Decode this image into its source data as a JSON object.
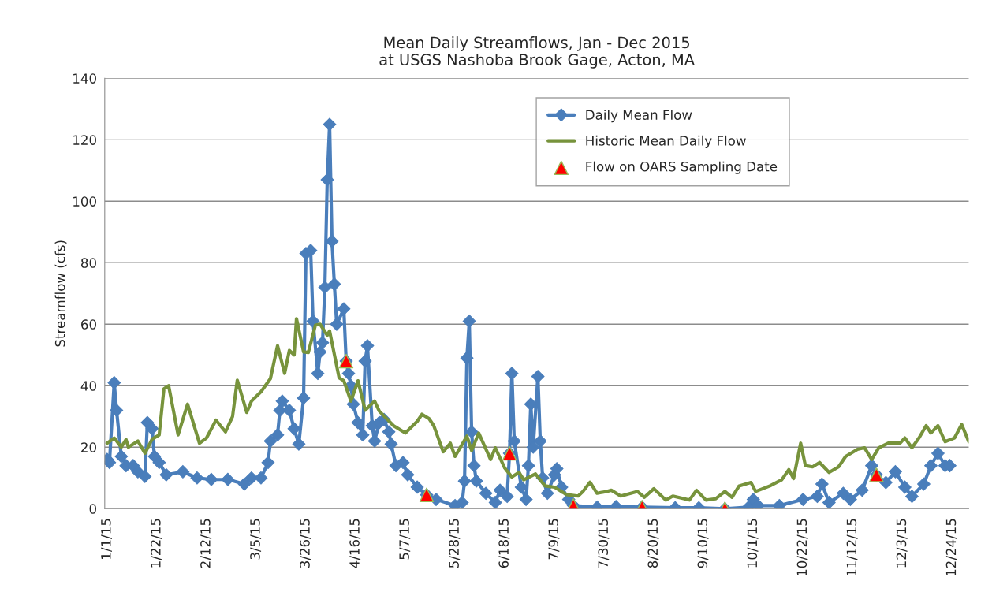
{
  "chart_data": {
    "type": "line",
    "title": "Mean Daily Streamflows, Jan - Dec 2015\nat USGS Nashoba Brook Gage, Acton, MA",
    "ylabel": "Streamflow (cfs)",
    "xlim": [
      "2014-12-31",
      "2015-12-31"
    ],
    "xticks": [
      {
        "value": "2015-01-01",
        "label": "1/1/15"
      },
      {
        "value": "2015-01-22",
        "label": "1/22/15"
      },
      {
        "value": "2015-02-12",
        "label": "2/12/15"
      },
      {
        "value": "2015-03-05",
        "label": "3/5/15"
      },
      {
        "value": "2015-03-26",
        "label": "3/26/15"
      },
      {
        "value": "2015-04-16",
        "label": "4/16/15"
      },
      {
        "value": "2015-05-07",
        "label": "5/7/15"
      },
      {
        "value": "2015-05-28",
        "label": "5/28/15"
      },
      {
        "value": "2015-06-18",
        "label": "6/18/15"
      },
      {
        "value": "2015-07-09",
        "label": "7/9/15"
      },
      {
        "value": "2015-07-30",
        "label": "7/30/15"
      },
      {
        "value": "2015-08-20",
        "label": "8/20/15"
      },
      {
        "value": "2015-09-10",
        "label": "9/10/15"
      },
      {
        "value": "2015-10-01",
        "label": "10/1/15"
      },
      {
        "value": "2015-10-22",
        "label": "10/22/15"
      },
      {
        "value": "2015-11-12",
        "label": "11/12/15"
      },
      {
        "value": "2015-12-03",
        "label": "12/3/15"
      },
      {
        "value": "2015-12-24",
        "label": "12/24/15"
      }
    ],
    "ylim": [
      0,
      140
    ],
    "yticks": [
      0,
      20,
      40,
      60,
      80,
      100,
      120,
      140
    ],
    "grid": "y",
    "legend": "top right",
    "line_style": "solid",
    "series": [
      {
        "name": "Daily Mean Flow",
        "marker": "diamond",
        "color": "#4a7ebb",
        "x": [
          "2015-01-01",
          "2015-01-02",
          "2015-01-04",
          "2015-01-05",
          "2015-01-07",
          "2015-01-09",
          "2015-01-12",
          "2015-01-14",
          "2015-01-17",
          "2015-01-18",
          "2015-01-20",
          "2015-01-21",
          "2015-01-23",
          "2015-01-26",
          "2015-02-02",
          "2015-02-08",
          "2015-02-14",
          "2015-02-21",
          "2015-02-28",
          "2015-03-03",
          "2015-03-07",
          "2015-03-10",
          "2015-03-11",
          "2015-03-14",
          "2015-03-15",
          "2015-03-16",
          "2015-03-19",
          "2015-03-21",
          "2015-03-23",
          "2015-03-25",
          "2015-03-26",
          "2015-03-28",
          "2015-03-29",
          "2015-03-31",
          "2015-04-01",
          "2015-04-02",
          "2015-04-03",
          "2015-04-04",
          "2015-04-05",
          "2015-04-06",
          "2015-04-07",
          "2015-04-08",
          "2015-04-11",
          "2015-04-12",
          "2015-04-13",
          "2015-04-14",
          "2015-04-15",
          "2015-04-17",
          "2015-04-19",
          "2015-04-20",
          "2015-04-21",
          "2015-04-23",
          "2015-04-24",
          "2015-04-26",
          "2015-04-28",
          "2015-04-30",
          "2015-05-01",
          "2015-05-03",
          "2015-05-06",
          "2015-05-08",
          "2015-05-12",
          "2015-05-16",
          "2015-05-20",
          "2015-05-28",
          "2015-05-31",
          "2015-06-01",
          "2015-06-02",
          "2015-06-03",
          "2015-06-04",
          "2015-06-05",
          "2015-06-06",
          "2015-06-10",
          "2015-06-14",
          "2015-06-16",
          "2015-06-19",
          "2015-06-20",
          "2015-06-21",
          "2015-06-22",
          "2015-06-25",
          "2015-06-27",
          "2015-06-28",
          "2015-06-29",
          "2015-06-30",
          "2015-07-02",
          "2015-07-03",
          "2015-07-04",
          "2015-07-06",
          "2015-07-09",
          "2015-07-10",
          "2015-07-12",
          "2015-07-15",
          "2015-07-17",
          "2015-07-27",
          "2015-08-04",
          "2015-08-15",
          "2015-08-29",
          "2015-09-08",
          "2015-09-19",
          "2015-09-29",
          "2015-10-01",
          "2015-10-03",
          "2015-10-12",
          "2015-10-22",
          "2015-10-28",
          "2015-10-30",
          "2015-11-02",
          "2015-11-08",
          "2015-11-11",
          "2015-11-16",
          "2015-11-20",
          "2015-11-22",
          "2015-11-26",
          "2015-11-30",
          "2015-12-04",
          "2015-12-07",
          "2015-12-12",
          "2015-12-15",
          "2015-12-18",
          "2015-12-21",
          "2015-12-23"
        ],
        "values": [
          16,
          15,
          41,
          32,
          17,
          14,
          14,
          12,
          10.5,
          28,
          26,
          17,
          15,
          11,
          12,
          10,
          9.5,
          9.5,
          8,
          10,
          10,
          15,
          22,
          24,
          32,
          35,
          32,
          26,
          21,
          36,
          83,
          84,
          61,
          44,
          51,
          54,
          72,
          107,
          125,
          87,
          73,
          60,
          65,
          48,
          44,
          40,
          34,
          28,
          24,
          48,
          53,
          27,
          22,
          28,
          29,
          25,
          21,
          14,
          15,
          11,
          7,
          4.5,
          3,
          1,
          2,
          9,
          49,
          61,
          25,
          14,
          9,
          5,
          2,
          6,
          4,
          18,
          44,
          22,
          7,
          3,
          14,
          34,
          20,
          43,
          22,
          10,
          5,
          11,
          13,
          7,
          3,
          1,
          0.5,
          0.7,
          0.5,
          0.3,
          0.3,
          0,
          0.5,
          3,
          1,
          1,
          3,
          4,
          8,
          2,
          5,
          3,
          6,
          14,
          11,
          8.5,
          12,
          7,
          4,
          8,
          14,
          18,
          14,
          14
        ]
      },
      {
        "name": "Historic Mean Daily Flow",
        "marker": "none",
        "color": "#77933c",
        "x": [
          "2015-01-01",
          "2015-01-04",
          "2015-01-07",
          "2015-01-09",
          "2015-01-10",
          "2015-01-14",
          "2015-01-17",
          "2015-01-20",
          "2015-01-23",
          "2015-01-25",
          "2015-01-27",
          "2015-01-31",
          "2015-02-04",
          "2015-02-09",
          "2015-02-12",
          "2015-02-16",
          "2015-02-20",
          "2015-02-23",
          "2015-02-25",
          "2015-03-01",
          "2015-03-03",
          "2015-03-07",
          "2015-03-11",
          "2015-03-14",
          "2015-03-17",
          "2015-03-19",
          "2015-03-21",
          "2015-03-22",
          "2015-03-25",
          "2015-03-27",
          "2015-03-30",
          "2015-04-01",
          "2015-04-04",
          "2015-04-05",
          "2015-04-09",
          "2015-04-11",
          "2015-04-14",
          "2015-04-17",
          "2015-04-20",
          "2015-04-24",
          "2015-04-26",
          "2015-05-02",
          "2015-05-07",
          "2015-05-12",
          "2015-05-14",
          "2015-05-17",
          "2015-05-19",
          "2015-05-23",
          "2015-05-26",
          "2015-05-28",
          "2015-06-02",
          "2015-06-04",
          "2015-06-07",
          "2015-06-12",
          "2015-06-14",
          "2015-06-18",
          "2015-06-21",
          "2015-06-24",
          "2015-06-26",
          "2015-07-01",
          "2015-07-05",
          "2015-07-09",
          "2015-07-14",
          "2015-07-19",
          "2015-07-21",
          "2015-07-24",
          "2015-07-27",
          "2015-07-31",
          "2015-08-02",
          "2015-08-06",
          "2015-08-13",
          "2015-08-16",
          "2015-08-20",
          "2015-08-25",
          "2015-08-28",
          "2015-09-04",
          "2015-09-07",
          "2015-09-11",
          "2015-09-15",
          "2015-09-19",
          "2015-09-22",
          "2015-09-25",
          "2015-09-30",
          "2015-10-02",
          "2015-10-08",
          "2015-10-13",
          "2015-10-16",
          "2015-10-18",
          "2015-10-21",
          "2015-10-23",
          "2015-10-26",
          "2015-10-29",
          "2015-11-02",
          "2015-11-06",
          "2015-11-09",
          "2015-11-14",
          "2015-11-17",
          "2015-11-20",
          "2015-11-23",
          "2015-11-27",
          "2015-12-02",
          "2015-12-04",
          "2015-12-07",
          "2015-12-10",
          "2015-12-13",
          "2015-12-15",
          "2015-12-18",
          "2015-12-21",
          "2015-12-25",
          "2015-12-28",
          "2015-12-31"
        ],
        "values": [
          21.3,
          23,
          20,
          22.5,
          20,
          22,
          18,
          22.6,
          24,
          39,
          40,
          24,
          34,
          21.3,
          23,
          28.8,
          25,
          30,
          41.8,
          31.3,
          35,
          38,
          42.3,
          53,
          44,
          51.5,
          50,
          61.8,
          51,
          50.8,
          59.7,
          60,
          56.4,
          57.8,
          42.6,
          41.6,
          35,
          41.6,
          32,
          35,
          31.7,
          27,
          24.6,
          28.4,
          30.7,
          29.3,
          27,
          18.5,
          21.3,
          17,
          23.6,
          18.9,
          24.6,
          16,
          19.8,
          13.2,
          10.3,
          11.8,
          9.4,
          11.3,
          7.4,
          7,
          4.6,
          4.1,
          5.6,
          8.6,
          5,
          5.6,
          6,
          4.1,
          5.6,
          3.7,
          6.5,
          2.8,
          4.1,
          2.8,
          6,
          2.8,
          3.2,
          5.6,
          3.7,
          7.4,
          8.5,
          5.6,
          7.4,
          9.4,
          12.7,
          9.8,
          21.3,
          14,
          13.6,
          15,
          11.8,
          13.6,
          17,
          19.3,
          19.8,
          16,
          19.8,
          21.3,
          21.3,
          23,
          19.8,
          23,
          27,
          24.6,
          27,
          21.8,
          23,
          27.4,
          21.8
        ]
      },
      {
        "name": "Flow on OARS Sampling Date",
        "type": "scatter",
        "marker": "triangle",
        "color": "#ff0000",
        "x": [
          "2015-04-12",
          "2015-05-16",
          "2015-06-20",
          "2015-07-17",
          "2015-08-15",
          "2015-09-19",
          "2015-11-22"
        ],
        "values": [
          48,
          4.5,
          18,
          1,
          0.5,
          0,
          11
        ]
      }
    ]
  }
}
